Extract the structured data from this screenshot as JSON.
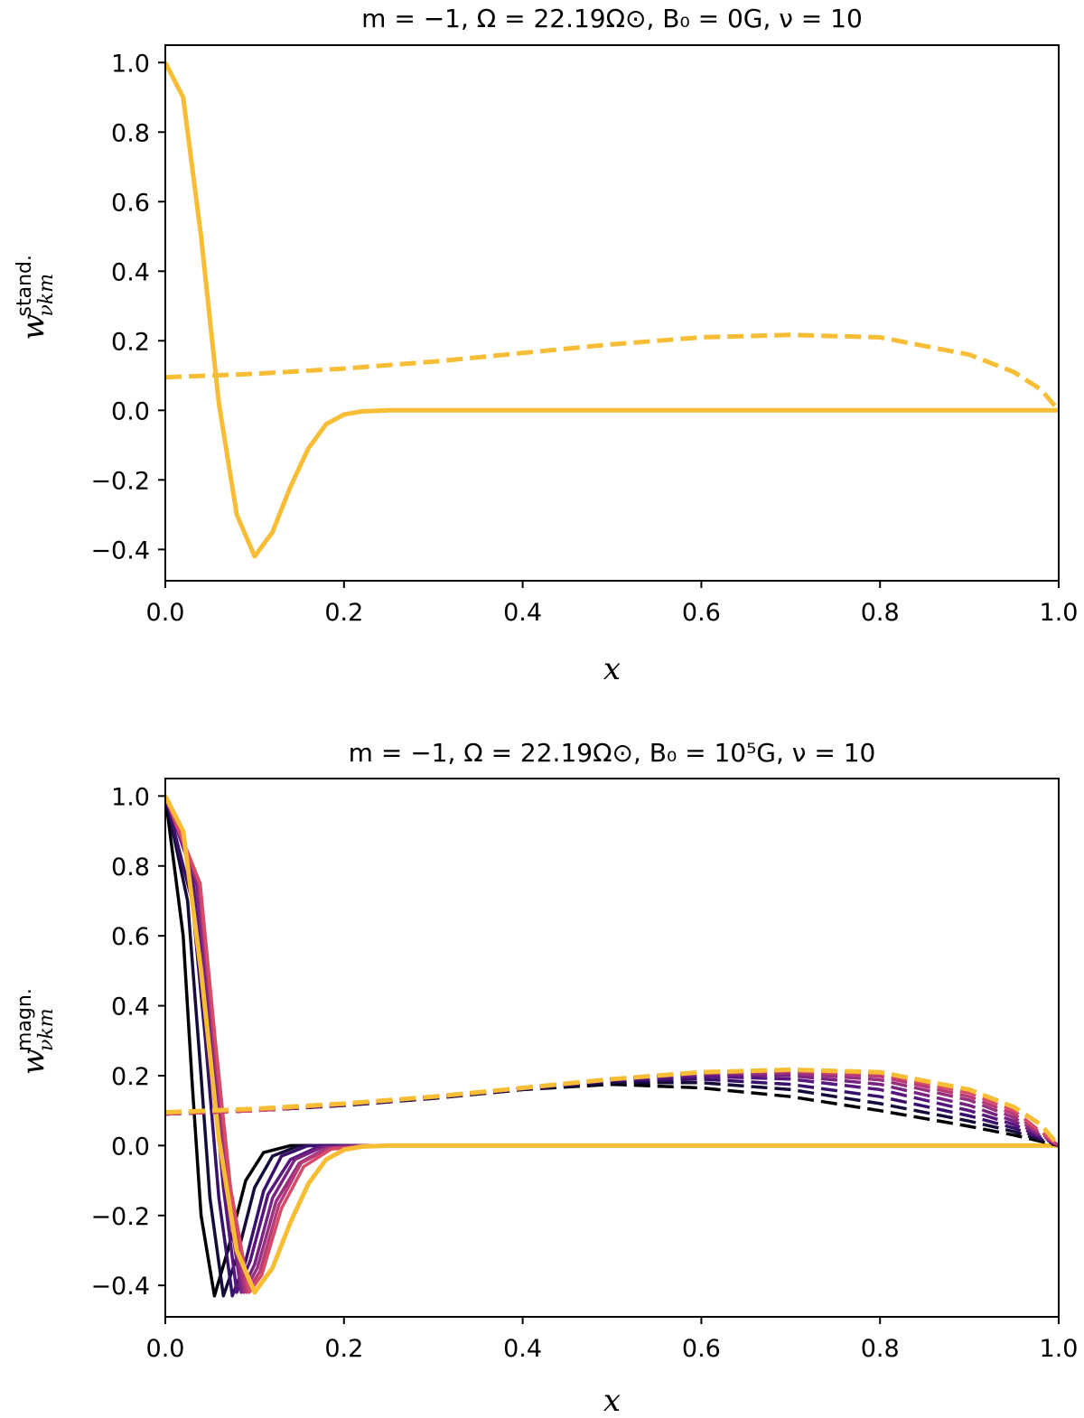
{
  "colors": {
    "final": "#f6bd35",
    "ramp": [
      "#000004",
      "#160b39",
      "#36106b",
      "#57157e",
      "#782281",
      "#99307f",
      "#b93a77",
      "#d74b66"
    ]
  },
  "chart_data": [
    {
      "type": "line",
      "title": "m = −1,  Ω = 22.19Ω⊙,  B₀ = 0G,  ν = 10",
      "xlabel": "x",
      "ylabel": {
        "main": "w",
        "sup": "stand.",
        "sub": "νkm"
      },
      "xlim": [
        0.0,
        1.0
      ],
      "ylim": [
        -0.49,
        1.05
      ],
      "xticks": [
        "0.0",
        "0.2",
        "0.4",
        "0.6",
        "0.8",
        "1.0"
      ],
      "yticks": [
        "−0.4",
        "−0.2",
        "0.0",
        "0.2",
        "0.4",
        "0.6",
        "0.8",
        "1.0"
      ],
      "series": [
        {
          "style": "solid",
          "x": [
            0.0,
            0.02,
            0.04,
            0.05,
            0.06,
            0.08,
            0.1,
            0.12,
            0.14,
            0.16,
            0.18,
            0.2,
            0.22,
            0.25,
            0.3,
            0.4,
            0.6,
            0.8,
            1.0
          ],
          "y": [
            1.0,
            0.9,
            0.5,
            0.26,
            0.02,
            -0.3,
            -0.42,
            -0.35,
            -0.22,
            -0.11,
            -0.04,
            -0.012,
            -0.003,
            0.0,
            0.0,
            0.0,
            0.0,
            0.0,
            0.0
          ]
        },
        {
          "style": "dashed",
          "x": [
            0.0,
            0.1,
            0.2,
            0.3,
            0.4,
            0.5,
            0.6,
            0.7,
            0.8,
            0.9,
            0.95,
            0.98,
            1.0
          ],
          "y": [
            0.095,
            0.105,
            0.12,
            0.14,
            0.165,
            0.19,
            0.21,
            0.217,
            0.21,
            0.16,
            0.11,
            0.06,
            0.0
          ]
        }
      ]
    },
    {
      "type": "line",
      "title": "m = −1,  Ω = 22.19Ω⊙,  B₀ = 10⁵G,  ν = 10",
      "xlabel": "x",
      "ylabel": {
        "main": "w",
        "sup": "magn.",
        "sub": "νkm"
      },
      "xlim": [
        0.0,
        1.0
      ],
      "ylim": [
        -0.49,
        1.05
      ],
      "xticks": [
        "0.0",
        "0.2",
        "0.4",
        "0.6",
        "0.8",
        "1.0"
      ],
      "yticks": [
        "−0.4",
        "−0.2",
        "0.0",
        "0.2",
        "0.4",
        "0.6",
        "0.8",
        "1.0"
      ],
      "series": [
        {
          "style": "solid",
          "x": [
            0.0,
            0.02,
            0.03,
            0.04,
            0.055,
            0.07,
            0.09,
            0.11,
            0.14,
            0.2,
            0.3,
            1.0
          ],
          "y": [
            1.0,
            0.6,
            0.18,
            -0.2,
            -0.43,
            -0.3,
            -0.1,
            -0.02,
            0.0,
            0.0,
            0.0,
            0.0
          ]
        },
        {
          "style": "solid",
          "x": [
            0.0,
            0.025,
            0.04,
            0.05,
            0.065,
            0.08,
            0.1,
            0.12,
            0.15,
            0.2,
            0.3,
            1.0
          ],
          "y": [
            1.0,
            0.7,
            0.2,
            -0.15,
            -0.43,
            -0.32,
            -0.12,
            -0.03,
            0.0,
            0.0,
            0.0,
            0.0
          ]
        },
        {
          "style": "solid",
          "x": [
            0.0,
            0.03,
            0.045,
            0.06,
            0.075,
            0.09,
            0.11,
            0.13,
            0.16,
            0.2,
            0.3,
            1.0
          ],
          "y": [
            1.0,
            0.7,
            0.3,
            -0.15,
            -0.43,
            -0.33,
            -0.13,
            -0.03,
            0.0,
            0.0,
            0.0,
            0.0
          ]
        },
        {
          "style": "solid",
          "x": [
            0.0,
            0.03,
            0.05,
            0.065,
            0.08,
            0.095,
            0.115,
            0.14,
            0.17,
            0.21,
            0.3,
            1.0
          ],
          "y": [
            1.0,
            0.78,
            0.3,
            -0.12,
            -0.42,
            -0.33,
            -0.14,
            -0.04,
            -0.005,
            0.0,
            0.0,
            0.0
          ]
        },
        {
          "style": "solid",
          "x": [
            0.0,
            0.035,
            0.052,
            0.068,
            0.085,
            0.1,
            0.12,
            0.145,
            0.175,
            0.22,
            0.3,
            1.0
          ],
          "y": [
            1.0,
            0.75,
            0.3,
            -0.12,
            -0.42,
            -0.34,
            -0.15,
            -0.04,
            -0.005,
            0.0,
            0.0,
            0.0
          ]
        },
        {
          "style": "solid",
          "x": [
            0.0,
            0.037,
            0.054,
            0.07,
            0.088,
            0.103,
            0.124,
            0.15,
            0.18,
            0.225,
            0.3,
            1.0
          ],
          "y": [
            1.0,
            0.75,
            0.3,
            -0.12,
            -0.42,
            -0.35,
            -0.16,
            -0.05,
            -0.008,
            0.0,
            0.0,
            0.0
          ]
        },
        {
          "style": "solid",
          "x": [
            0.0,
            0.038,
            0.055,
            0.072,
            0.091,
            0.106,
            0.127,
            0.152,
            0.183,
            0.23,
            0.3,
            1.0
          ],
          "y": [
            1.0,
            0.75,
            0.3,
            -0.12,
            -0.42,
            -0.36,
            -0.17,
            -0.05,
            -0.008,
            0.0,
            0.0,
            0.0
          ]
        },
        {
          "style": "solid",
          "x": [
            0.0,
            0.039,
            0.056,
            0.073,
            0.094,
            0.108,
            0.13,
            0.155,
            0.186,
            0.235,
            0.3,
            1.0
          ],
          "y": [
            1.0,
            0.75,
            0.3,
            -0.12,
            -0.42,
            -0.37,
            -0.18,
            -0.06,
            -0.01,
            0.0,
            0.0,
            0.0
          ]
        },
        {
          "style": "solid",
          "x": [
            0.0,
            0.02,
            0.04,
            0.05,
            0.06,
            0.08,
            0.1,
            0.12,
            0.14,
            0.16,
            0.18,
            0.2,
            0.22,
            0.25,
            0.3,
            1.0
          ],
          "y": [
            1.0,
            0.9,
            0.5,
            0.26,
            0.02,
            -0.3,
            -0.42,
            -0.35,
            -0.22,
            -0.11,
            -0.04,
            -0.012,
            -0.003,
            0.0,
            0.0,
            0.0
          ]
        },
        {
          "style": "dashed",
          "x": [
            0.0,
            0.1,
            0.2,
            0.3,
            0.4,
            0.5,
            0.6,
            0.7,
            0.8,
            0.9,
            0.95,
            1.0
          ],
          "y": [
            0.09,
            0.1,
            0.115,
            0.135,
            0.16,
            0.175,
            0.165,
            0.14,
            0.1,
            0.055,
            0.03,
            0.0
          ]
        },
        {
          "style": "dashed",
          "x": [
            0.0,
            0.1,
            0.2,
            0.3,
            0.4,
            0.5,
            0.6,
            0.7,
            0.8,
            0.9,
            0.95,
            1.0
          ],
          "y": [
            0.09,
            0.1,
            0.115,
            0.135,
            0.16,
            0.18,
            0.18,
            0.16,
            0.12,
            0.07,
            0.04,
            0.0
          ]
        },
        {
          "style": "dashed",
          "x": [
            0.0,
            0.1,
            0.2,
            0.3,
            0.4,
            0.5,
            0.6,
            0.7,
            0.8,
            0.9,
            0.95,
            1.0
          ],
          "y": [
            0.09,
            0.1,
            0.116,
            0.137,
            0.162,
            0.185,
            0.19,
            0.175,
            0.14,
            0.085,
            0.05,
            0.0
          ]
        },
        {
          "style": "dashed",
          "x": [
            0.0,
            0.1,
            0.2,
            0.3,
            0.4,
            0.5,
            0.6,
            0.7,
            0.8,
            0.9,
            0.95,
            1.0
          ],
          "y": [
            0.09,
            0.1,
            0.117,
            0.138,
            0.163,
            0.188,
            0.198,
            0.19,
            0.16,
            0.1,
            0.06,
            0.0
          ]
        },
        {
          "style": "dashed",
          "x": [
            0.0,
            0.1,
            0.2,
            0.3,
            0.4,
            0.5,
            0.6,
            0.7,
            0.8,
            0.9,
            0.95,
            1.0
          ],
          "y": [
            0.09,
            0.1,
            0.117,
            0.139,
            0.164,
            0.19,
            0.204,
            0.2,
            0.175,
            0.115,
            0.07,
            0.0
          ]
        },
        {
          "style": "dashed",
          "x": [
            0.0,
            0.1,
            0.2,
            0.3,
            0.4,
            0.5,
            0.6,
            0.7,
            0.8,
            0.9,
            0.95,
            1.0
          ],
          "y": [
            0.09,
            0.1,
            0.118,
            0.14,
            0.165,
            0.19,
            0.207,
            0.207,
            0.188,
            0.13,
            0.08,
            0.0
          ]
        },
        {
          "style": "dashed",
          "x": [
            0.0,
            0.1,
            0.2,
            0.3,
            0.4,
            0.5,
            0.6,
            0.7,
            0.8,
            0.9,
            0.95,
            1.0
          ],
          "y": [
            0.09,
            0.1,
            0.118,
            0.14,
            0.165,
            0.19,
            0.209,
            0.212,
            0.198,
            0.14,
            0.09,
            0.0
          ]
        },
        {
          "style": "dashed",
          "x": [
            0.0,
            0.1,
            0.2,
            0.3,
            0.4,
            0.5,
            0.6,
            0.7,
            0.8,
            0.9,
            0.95,
            1.0
          ],
          "y": [
            0.09,
            0.1,
            0.119,
            0.14,
            0.165,
            0.19,
            0.21,
            0.215,
            0.205,
            0.15,
            0.1,
            0.0
          ]
        },
        {
          "style": "dashed",
          "x": [
            0.0,
            0.1,
            0.2,
            0.3,
            0.4,
            0.5,
            0.6,
            0.7,
            0.8,
            0.9,
            0.95,
            0.98,
            1.0
          ],
          "y": [
            0.095,
            0.105,
            0.12,
            0.14,
            0.165,
            0.19,
            0.21,
            0.217,
            0.21,
            0.16,
            0.11,
            0.06,
            0.0
          ]
        }
      ]
    }
  ]
}
